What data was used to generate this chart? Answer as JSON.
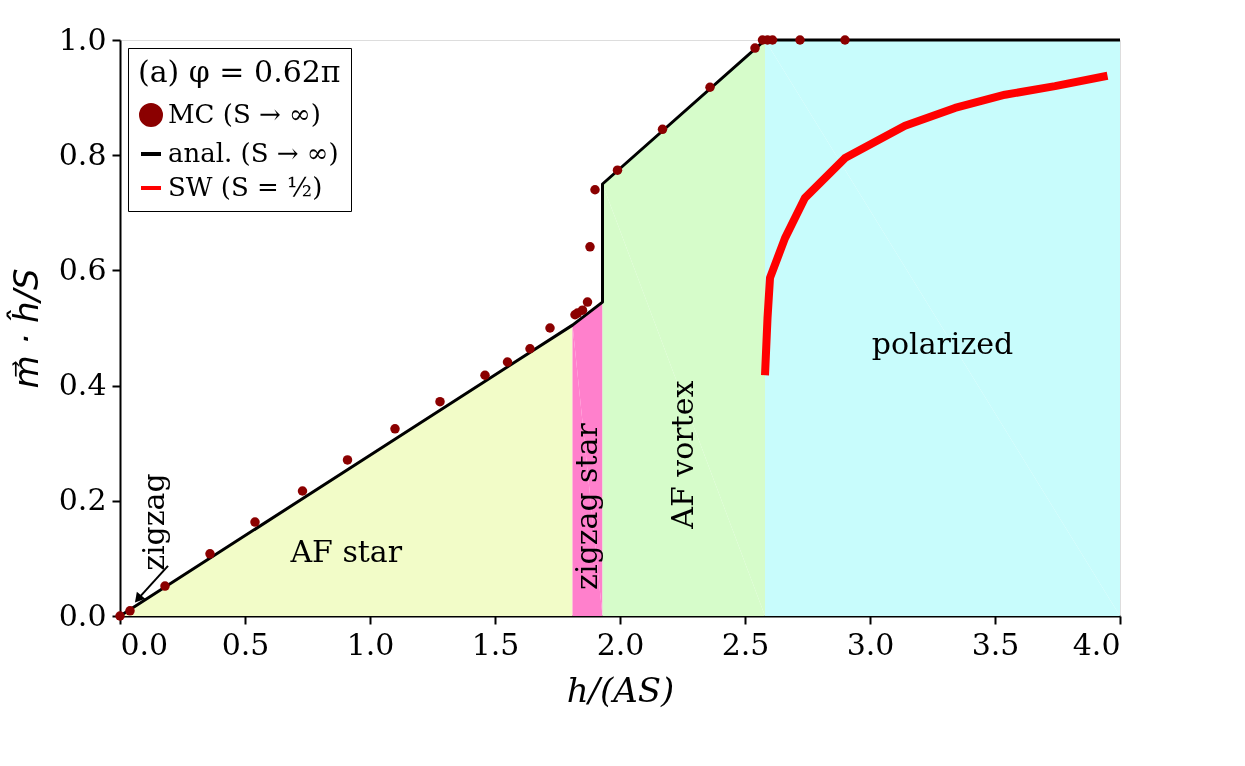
{
  "chart_data": {
    "type": "scatter",
    "xlabel": "h/(AS)",
    "ylabel": "m⃗ · ĥ/S",
    "legend_title": "(a) φ = 0.62π",
    "xlim": [
      0,
      4
    ],
    "ylim": [
      0,
      1
    ],
    "xticks": [
      {
        "value": 0,
        "label": "0.0"
      },
      0.5,
      {
        "value": 1,
        "label": "1.0"
      },
      1.5,
      {
        "value": 2,
        "label": "2.0"
      },
      2.5,
      {
        "value": 3,
        "label": "3.0"
      },
      3.5,
      {
        "value": 4,
        "label": "4.0"
      }
    ],
    "yticks": [
      {
        "value": 0,
        "label": "0.0"
      },
      0.2,
      0.4,
      0.6,
      0.8,
      {
        "value": 1,
        "label": "1.0"
      }
    ],
    "grid": false,
    "legend": "top left",
    "series": [
      {
        "name": "AF star",
        "type": "area",
        "color": "#f2fcc8",
        "x": [
          0,
          1.81
        ],
        "values": [
          0,
          0.505
        ]
      },
      {
        "name": "zigzag star",
        "type": "area",
        "color": "#ff80cc",
        "x": [
          1.81,
          1.93
        ],
        "values": [
          0.505,
          0.545
        ]
      },
      {
        "name": "AF vortex",
        "type": "area",
        "color": "#d6fcca",
        "x": [
          1.93,
          2.58
        ],
        "values": [
          0.75,
          1.0
        ]
      },
      {
        "name": "polarized",
        "type": "area",
        "color": "#c8fcfc",
        "x": [
          2.58,
          4.0
        ],
        "values": [
          1.0,
          1.0
        ]
      },
      {
        "name": "MC (S → ∞)",
        "marker": "circle",
        "color": "#8b0000",
        "x": [
          0,
          0.04,
          0.18,
          0.36,
          0.54,
          0.73,
          0.91,
          1.1,
          1.28,
          1.46,
          1.55,
          1.64,
          1.72,
          1.82,
          1.83,
          1.85,
          1.87,
          1.88,
          1.9,
          1.99,
          2.17,
          2.36,
          2.54,
          2.57,
          2.59,
          2.61,
          2.72,
          2.9
        ],
        "values": [
          0,
          0.009,
          0.052,
          0.108,
          0.163,
          0.217,
          0.271,
          0.325,
          0.372,
          0.418,
          0.441,
          0.464,
          0.5,
          0.523,
          0.526,
          0.531,
          0.545,
          0.641,
          0.74,
          0.774,
          0.845,
          0.918,
          0.986,
          1.0,
          1.0,
          1.0,
          1.0,
          1.0
        ]
      },
      {
        "name": "anal. (S → ∞)",
        "type": "line",
        "color": "#000000",
        "x": [
          0,
          1.81,
          1.93,
          1.93,
          2.58,
          4.0
        ],
        "values": [
          0,
          0.505,
          0.545,
          0.75,
          1.0,
          1.0
        ]
      },
      {
        "name": "SW (S = ½)",
        "type": "line",
        "color": "#ff0000",
        "x": [
          2.58,
          2.59,
          2.6,
          2.66,
          2.74,
          2.9,
          3.14,
          3.34,
          3.54,
          3.74,
          3.95
        ],
        "values": [
          0.418,
          0.517,
          0.587,
          0.656,
          0.726,
          0.795,
          0.851,
          0.882,
          0.905,
          0.92,
          0.938
        ]
      }
    ],
    "annotations": [
      {
        "text": "zigzag",
        "x": 0.04,
        "y": 0.009
      }
    ]
  }
}
